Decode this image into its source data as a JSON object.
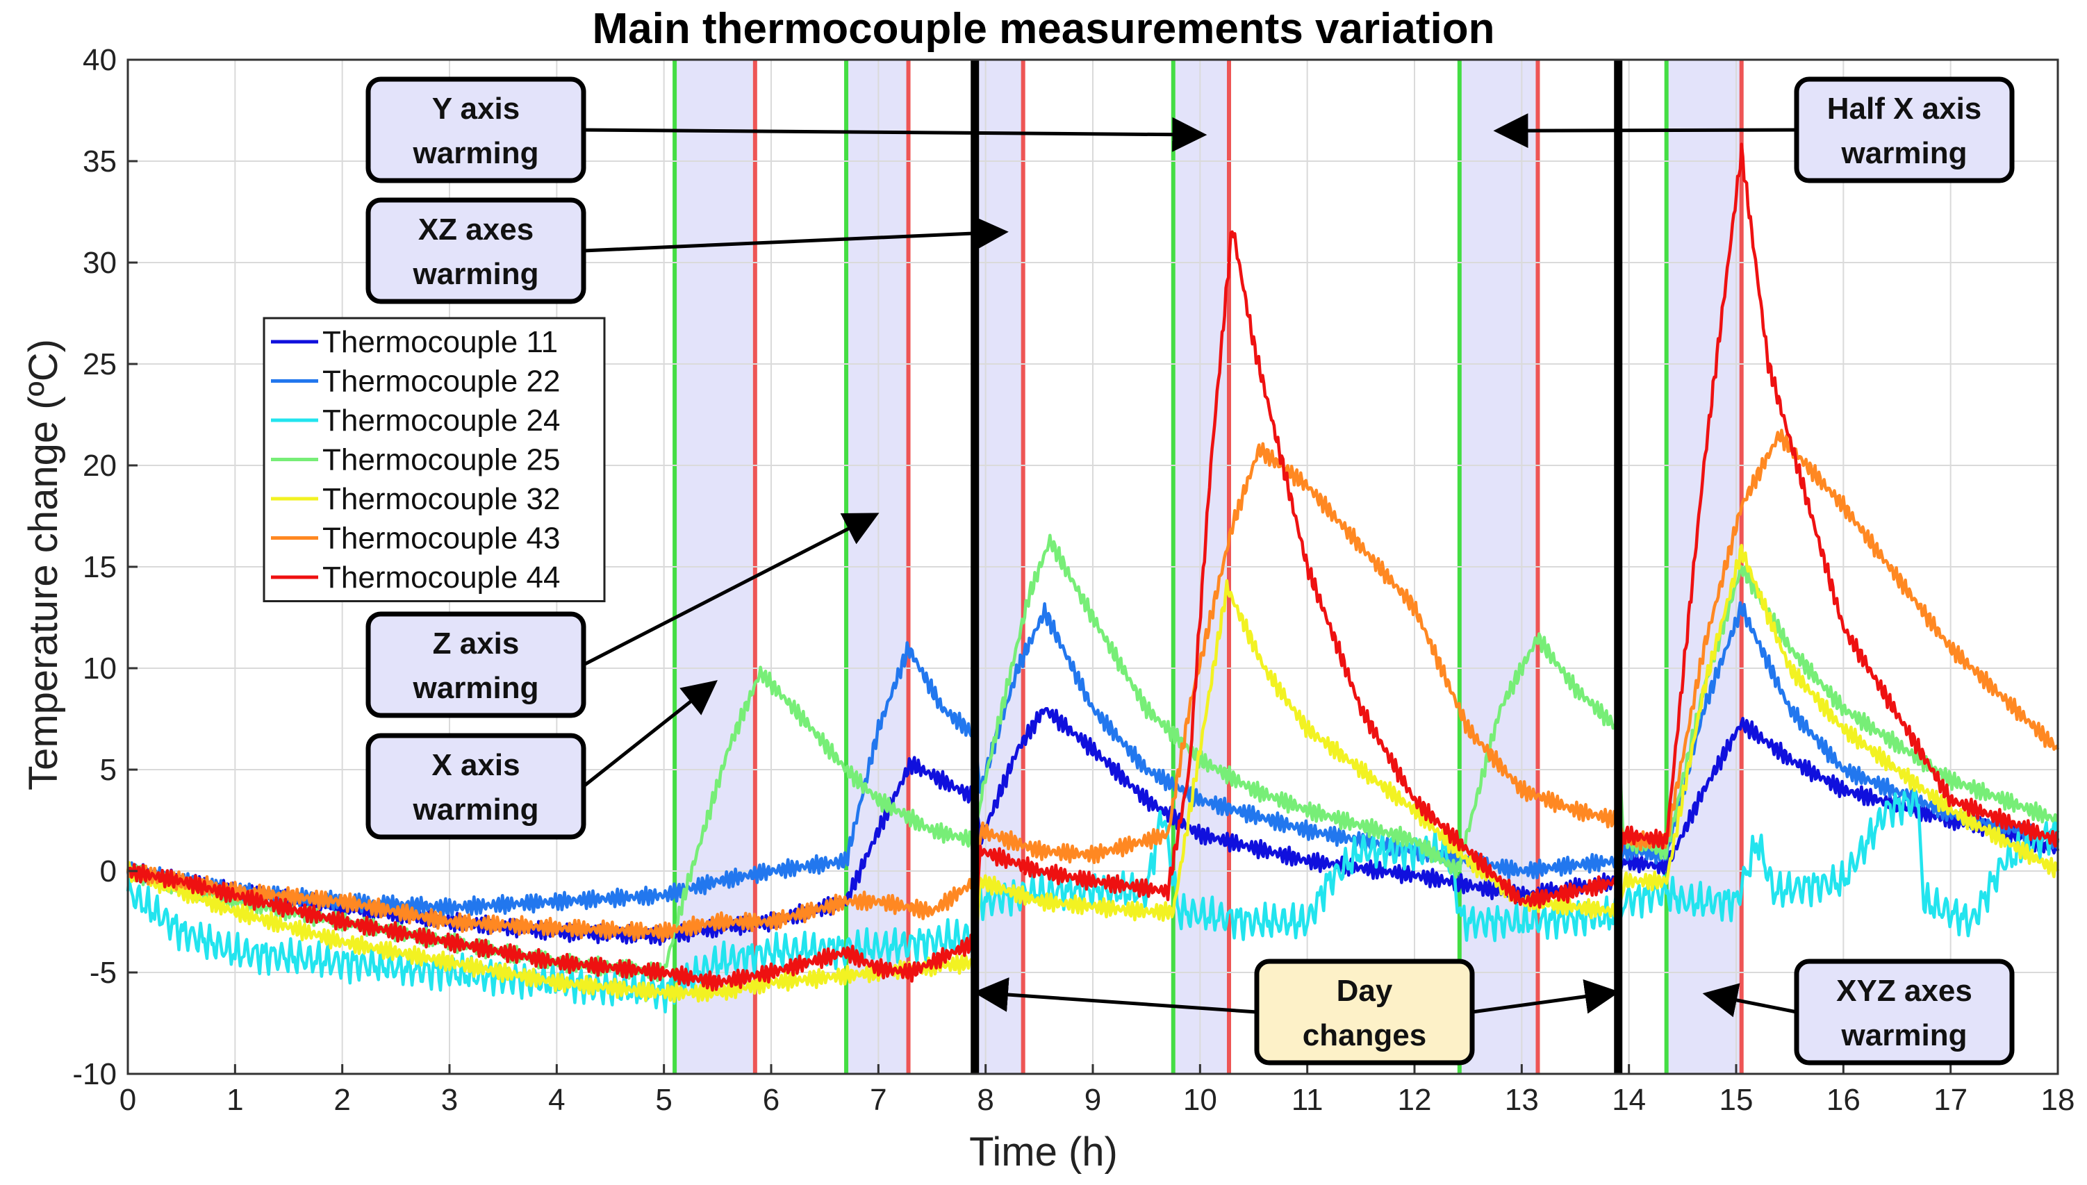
{
  "chart_data": {
    "type": "line",
    "title": "Main thermocouple measurements variation",
    "xlabel": "Time (h)",
    "ylabel": "Temperature change (ºC)",
    "xlim": [
      0,
      18
    ],
    "ylim": [
      -10,
      40
    ],
    "xticks": [
      0,
      1,
      2,
      3,
      4,
      5,
      6,
      7,
      8,
      9,
      10,
      11,
      12,
      13,
      14,
      15,
      16,
      17,
      18
    ],
    "yticks": [
      -10,
      -5,
      0,
      5,
      10,
      15,
      20,
      25,
      30,
      35,
      40
    ],
    "grid": true,
    "legend_position": "upper-left",
    "colors": {
      "band_fill": "#e3e3fa",
      "band_start": "#44dd44",
      "band_end": "#ee5555",
      "day_change": "#000000",
      "box_fill_blue": "#e3e3fa",
      "box_fill_yellow": "#fdf1c8"
    },
    "heating_intervals": [
      {
        "start": 5.1,
        "end": 5.85
      },
      {
        "start": 6.7,
        "end": 7.28
      },
      {
        "start": 7.9,
        "end": 8.35
      },
      {
        "start": 9.75,
        "end": 10.27
      },
      {
        "start": 12.42,
        "end": 13.15
      },
      {
        "start": 14.35,
        "end": 15.05
      }
    ],
    "day_changes": [
      7.9,
      13.9
    ],
    "series": [
      {
        "name": "Thermocouple 11",
        "color": "#1010dd",
        "points": [
          [
            0,
            0
          ],
          [
            0.5,
            -0.5
          ],
          [
            1,
            -1
          ],
          [
            2,
            -1.8
          ],
          [
            3,
            -2.5
          ],
          [
            4,
            -3
          ],
          [
            5,
            -3.2
          ],
          [
            5.5,
            -2.8
          ],
          [
            6,
            -2.5
          ],
          [
            6.7,
            -1.5
          ],
          [
            7,
            2
          ],
          [
            7.3,
            5.3
          ],
          [
            7.9,
            3.6
          ],
          [
            7.95,
            1.5
          ],
          [
            8.3,
            6
          ],
          [
            8.55,
            8
          ],
          [
            9,
            6
          ],
          [
            9.5,
            3.5
          ],
          [
            10,
            1.8
          ],
          [
            11,
            0.5
          ],
          [
            12,
            -0.2
          ],
          [
            13,
            -1.2
          ],
          [
            13.5,
            -0.8
          ],
          [
            13.9,
            -0.5
          ],
          [
            13.95,
            0.5
          ],
          [
            14.35,
            0.2
          ],
          [
            14.7,
            4
          ],
          [
            15.05,
            7.3
          ],
          [
            15.5,
            5.5
          ],
          [
            16,
            4
          ],
          [
            17,
            2.5
          ],
          [
            17.5,
            2
          ],
          [
            18,
            1
          ]
        ]
      },
      {
        "name": "Thermocouple 22",
        "color": "#2277ee",
        "points": [
          [
            0,
            0
          ],
          [
            0.5,
            -0.5
          ],
          [
            1,
            -1
          ],
          [
            2,
            -1.5
          ],
          [
            3,
            -1.8
          ],
          [
            4,
            -1.5
          ],
          [
            5,
            -1.2
          ],
          [
            5.5,
            -0.5
          ],
          [
            6,
            0
          ],
          [
            6.7,
            0.5
          ],
          [
            7,
            7
          ],
          [
            7.28,
            11
          ],
          [
            7.6,
            8
          ],
          [
            7.9,
            6.7
          ],
          [
            7.95,
            4
          ],
          [
            8.3,
            10
          ],
          [
            8.55,
            12.8
          ],
          [
            9,
            8
          ],
          [
            9.5,
            5
          ],
          [
            10,
            3.5
          ],
          [
            11,
            2
          ],
          [
            12,
            1
          ],
          [
            13,
            0
          ],
          [
            13.5,
            0.3
          ],
          [
            13.9,
            0.5
          ],
          [
            13.95,
            1
          ],
          [
            14.35,
            0.8
          ],
          [
            14.7,
            8
          ],
          [
            15.05,
            13
          ],
          [
            15.5,
            8
          ],
          [
            16,
            5
          ],
          [
            17,
            2.8
          ],
          [
            18,
            1.5
          ]
        ]
      },
      {
        "name": "Thermocouple 24",
        "color": "#22e4ee",
        "points": [
          [
            0,
            -1
          ],
          [
            0.5,
            -3
          ],
          [
            1,
            -4
          ],
          [
            2,
            -4.5
          ],
          [
            3,
            -5
          ],
          [
            4,
            -5.5
          ],
          [
            5,
            -6
          ],
          [
            5.5,
            -4.5
          ],
          [
            6,
            -4
          ],
          [
            6.7,
            -3.8
          ],
          [
            7,
            -3.8
          ],
          [
            7.9,
            -3.2
          ],
          [
            7.95,
            -1.5
          ],
          [
            8.5,
            -1
          ],
          [
            9.5,
            -1
          ],
          [
            9.65,
            3
          ],
          [
            9.8,
            -2
          ],
          [
            10.5,
            -2.5
          ],
          [
            11,
            -2.5
          ],
          [
            11.2,
            -0.5
          ],
          [
            11.5,
            1
          ],
          [
            12.3,
            1
          ],
          [
            12.45,
            -2.5
          ],
          [
            13,
            -2.5
          ],
          [
            13.9,
            -2.2
          ],
          [
            13.95,
            -1.5
          ],
          [
            14.35,
            -1
          ],
          [
            14.5,
            -1.5
          ],
          [
            15,
            -1.5
          ],
          [
            15.2,
            1.5
          ],
          [
            15.35,
            -1
          ],
          [
            16,
            -0.5
          ],
          [
            16.4,
            3
          ],
          [
            16.7,
            3.5
          ],
          [
            16.75,
            -1.5
          ],
          [
            17.2,
            -2.5
          ],
          [
            17.5,
            0.5
          ],
          [
            18,
            2
          ]
        ]
      },
      {
        "name": "Thermocouple 25",
        "color": "#77ee77",
        "points": [
          [
            0,
            0
          ],
          [
            0.5,
            -0.8
          ],
          [
            1,
            -1.5
          ],
          [
            2,
            -2.5
          ],
          [
            3,
            -3.5
          ],
          [
            4,
            -4.5
          ],
          [
            5,
            -5
          ],
          [
            5.2,
            -1
          ],
          [
            5.6,
            6
          ],
          [
            5.9,
            9.8
          ],
          [
            6.3,
            7.5
          ],
          [
            6.7,
            5
          ],
          [
            7,
            3.5
          ],
          [
            7.5,
            2
          ],
          [
            7.9,
            1.5
          ],
          [
            7.95,
            3.5
          ],
          [
            8.4,
            13.5
          ],
          [
            8.6,
            16.3
          ],
          [
            9,
            12.5
          ],
          [
            9.5,
            8
          ],
          [
            10,
            5.5
          ],
          [
            10.5,
            4
          ],
          [
            11,
            3
          ],
          [
            12,
            1.5
          ],
          [
            12.4,
            0
          ],
          [
            12.8,
            8
          ],
          [
            13.15,
            11.5
          ],
          [
            13.5,
            9
          ],
          [
            13.9,
            7
          ],
          [
            13.95,
            1.5
          ],
          [
            14.35,
            1
          ],
          [
            14.7,
            9
          ],
          [
            15.05,
            15
          ],
          [
            15.5,
            11
          ],
          [
            16,
            8
          ],
          [
            17,
            4.5
          ],
          [
            18,
            2.5
          ]
        ]
      },
      {
        "name": "Thermocouple 32",
        "color": "#f2f222",
        "points": [
          [
            0,
            0
          ],
          [
            0.5,
            -1
          ],
          [
            1,
            -2
          ],
          [
            2,
            -3.5
          ],
          [
            3,
            -4.5
          ],
          [
            4,
            -5.5
          ],
          [
            5,
            -6
          ],
          [
            5.5,
            -6
          ],
          [
            6,
            -5.5
          ],
          [
            7,
            -5
          ],
          [
            7.9,
            -4.5
          ],
          [
            7.95,
            -0.5
          ],
          [
            8.5,
            -1.5
          ],
          [
            9.5,
            -2
          ],
          [
            9.75,
            -2
          ],
          [
            10,
            6
          ],
          [
            10.25,
            14
          ],
          [
            10.6,
            10
          ],
          [
            11,
            7
          ],
          [
            12,
            3
          ],
          [
            12.5,
            0.5
          ],
          [
            13,
            -1.5
          ],
          [
            13.9,
            -2
          ],
          [
            13.95,
            -0.5
          ],
          [
            14.35,
            -0.5
          ],
          [
            14.7,
            9
          ],
          [
            15.05,
            15.8
          ],
          [
            15.5,
            10
          ],
          [
            16,
            7
          ],
          [
            17,
            3
          ],
          [
            18,
            0
          ]
        ]
      },
      {
        "name": "Thermocouple 43",
        "color": "#ff8822",
        "points": [
          [
            0,
            0
          ],
          [
            0.5,
            -0.5
          ],
          [
            1,
            -1
          ],
          [
            2,
            -1.5
          ],
          [
            3,
            -2.5
          ],
          [
            4,
            -2.8
          ],
          [
            5,
            -3
          ],
          [
            5.5,
            -2.5
          ],
          [
            6,
            -2.5
          ],
          [
            6.7,
            -1.5
          ],
          [
            7,
            -1.5
          ],
          [
            7.5,
            -2
          ],
          [
            7.9,
            -0.5
          ],
          [
            7.95,
            2
          ],
          [
            8.5,
            1
          ],
          [
            9,
            0.8
          ],
          [
            9.7,
            1.8
          ],
          [
            9.9,
            8
          ],
          [
            10.3,
            17
          ],
          [
            10.55,
            20.8
          ],
          [
            11,
            19
          ],
          [
            12,
            13
          ],
          [
            12.5,
            7
          ],
          [
            13,
            4
          ],
          [
            13.5,
            3
          ],
          [
            13.9,
            2.5
          ],
          [
            13.95,
            1.5
          ],
          [
            14.35,
            1.5
          ],
          [
            14.7,
            11
          ],
          [
            15.05,
            18
          ],
          [
            15.4,
            21.5
          ],
          [
            16,
            18
          ],
          [
            17,
            11
          ],
          [
            17.5,
            8.5
          ],
          [
            18,
            6
          ]
        ]
      },
      {
        "name": "Thermocouple 44",
        "color": "#ee1111",
        "points": [
          [
            0,
            0
          ],
          [
            0.5,
            -0.5
          ],
          [
            1,
            -1.2
          ],
          [
            2,
            -2.5
          ],
          [
            3,
            -3.5
          ],
          [
            4,
            -4.5
          ],
          [
            5,
            -5
          ],
          [
            5.5,
            -5.5
          ],
          [
            6,
            -5
          ],
          [
            6.7,
            -4
          ],
          [
            7,
            -4.8
          ],
          [
            7.3,
            -5
          ],
          [
            7.9,
            -3.5
          ],
          [
            7.95,
            1
          ],
          [
            8.5,
            0
          ],
          [
            9,
            -0.5
          ],
          [
            9.7,
            -1
          ],
          [
            9.9,
            5
          ],
          [
            10.1,
            20
          ],
          [
            10.3,
            31.8
          ],
          [
            10.5,
            26
          ],
          [
            11,
            15
          ],
          [
            11.5,
            8
          ],
          [
            12,
            3.5
          ],
          [
            12.5,
            1
          ],
          [
            13,
            -1.5
          ],
          [
            13.5,
            -1
          ],
          [
            13.9,
            -0.5
          ],
          [
            13.95,
            1.8
          ],
          [
            14.35,
            1.5
          ],
          [
            14.7,
            20
          ],
          [
            15.05,
            35.5
          ],
          [
            15.3,
            25
          ],
          [
            16,
            12
          ],
          [
            17,
            3.5
          ],
          [
            18,
            1.5
          ]
        ]
      }
    ],
    "annotations": [
      {
        "lines": [
          "Y axis",
          "warming"
        ],
        "style": "blue",
        "arrows": [
          [
            10.0,
            36.3
          ]
        ]
      },
      {
        "lines": [
          "XZ axes",
          "warming"
        ],
        "style": "blue",
        "arrows": [
          [
            8.15,
            31.5
          ]
        ]
      },
      {
        "lines": [
          "Z axis",
          "warming"
        ],
        "style": "blue",
        "arrows": [
          [
            6.95,
            17.5
          ]
        ]
      },
      {
        "lines": [
          "X axis",
          "warming"
        ],
        "style": "blue",
        "arrows": [
          [
            5.45,
            9.2
          ]
        ]
      },
      {
        "lines": [
          "Half X axis",
          "warming"
        ],
        "style": "blue",
        "arrows": [
          [
            12.8,
            36.5
          ]
        ]
      },
      {
        "lines": [
          "XYZ axes",
          "warming"
        ],
        "style": "blue",
        "arrows": [
          [
            14.75,
            -6.1
          ]
        ]
      },
      {
        "lines": [
          "Day",
          "changes"
        ],
        "style": "yellow",
        "arrows": [
          [
            7.95,
            -6
          ],
          [
            13.85,
            -6
          ]
        ]
      }
    ]
  }
}
